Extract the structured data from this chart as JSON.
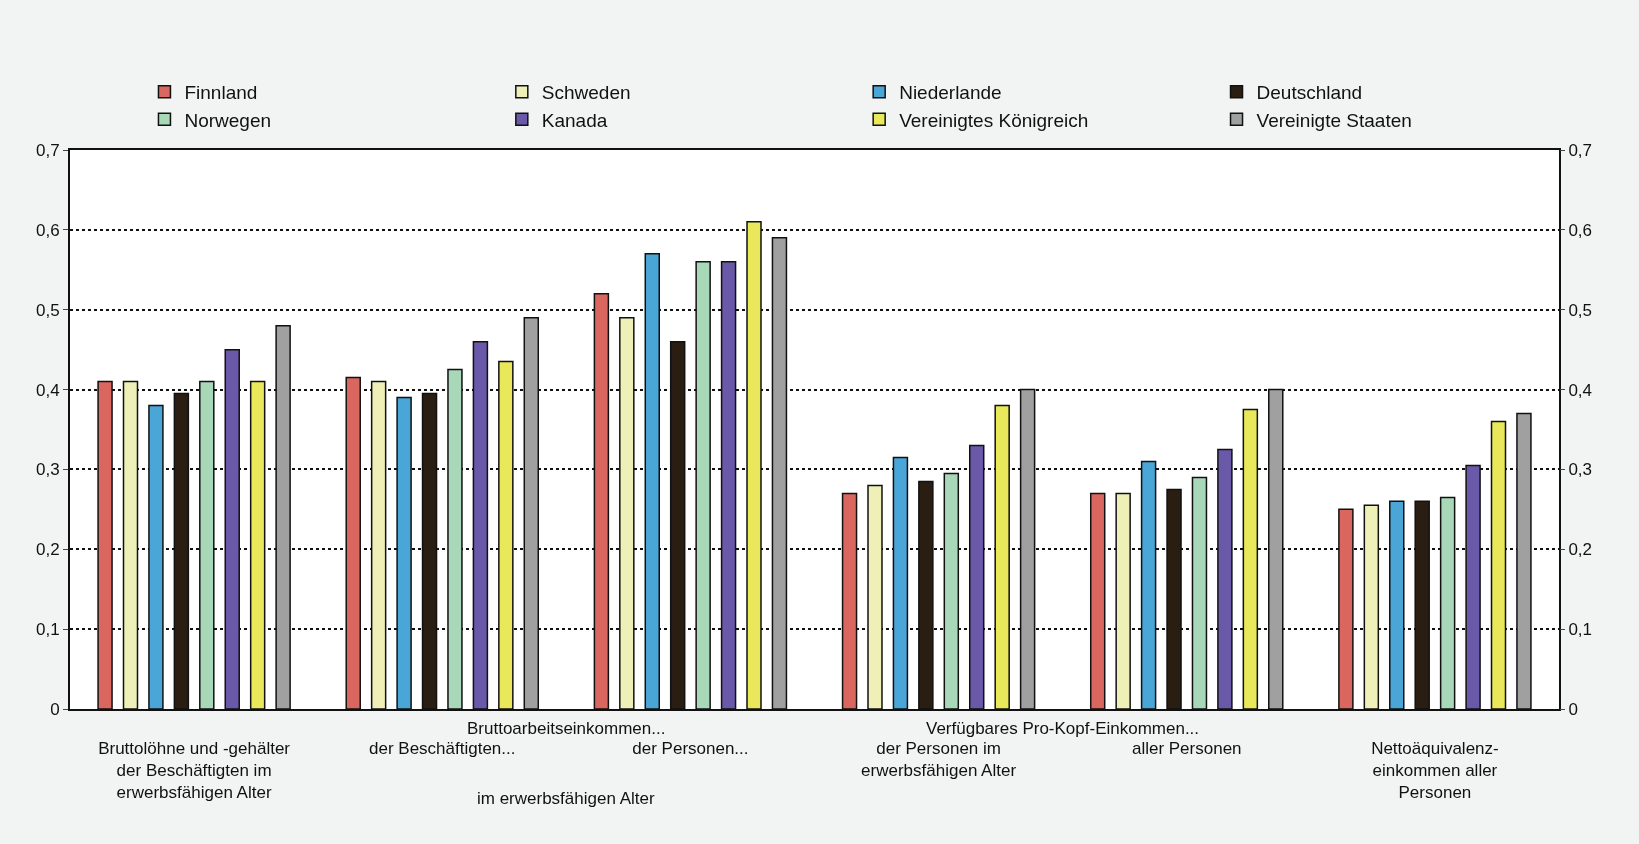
{
  "chart_data": {
    "type": "bar",
    "categories": [
      "Bruttolöhne und -gehälter\nder Beschäftigten im\nerwerbsfähigen Alter",
      "der Beschäftigten...",
      "der Personen...",
      "der Personen im\nerwerbsfähigen Alter",
      "aller Personen",
      "Nettoäquivalenz-\neinkommen aller\nPersonen"
    ],
    "annotations": [
      "Bruttoarbeitseinkommen...",
      "im erwerbsfähigen Alter",
      "Verfügbares Pro-Kopf-Einkommen..."
    ],
    "series": [
      {
        "name": "Finnland",
        "color": "#d9675f",
        "values": [
          0.41,
          0.415,
          0.52,
          0.27,
          0.27,
          0.25
        ]
      },
      {
        "name": "Schweden",
        "color": "#eef0b8",
        "values": [
          0.41,
          0.41,
          0.49,
          0.28,
          0.27,
          0.255
        ]
      },
      {
        "name": "Niederlande",
        "color": "#4aa6d6",
        "values": [
          0.38,
          0.39,
          0.57,
          0.315,
          0.31,
          0.26
        ]
      },
      {
        "name": "Deutschland",
        "color": "#2a1e12",
        "values": [
          0.395,
          0.395,
          0.46,
          0.285,
          0.275,
          0.26
        ]
      },
      {
        "name": "Norwegen",
        "color": "#a8d8b8",
        "values": [
          0.41,
          0.425,
          0.56,
          0.295,
          0.29,
          0.265
        ]
      },
      {
        "name": "Kanada",
        "color": "#6a58a8",
        "values": [
          0.45,
          0.46,
          0.56,
          0.33,
          0.325,
          0.305
        ]
      },
      {
        "name": "Vereinigtes Königreich",
        "color": "#e8e85a",
        "values": [
          0.41,
          0.435,
          0.61,
          0.38,
          0.375,
          0.36
        ]
      },
      {
        "name": "Vereinigte Staaten",
        "color": "#a0a0a0",
        "values": [
          0.48,
          0.49,
          0.59,
          0.4,
          0.4,
          0.37
        ]
      }
    ],
    "ylim": [
      0,
      0.7
    ],
    "yticks": [
      0,
      {
        "value": 0.1,
        "label": "0,1"
      },
      {
        "value": 0.2,
        "label": "0,2"
      },
      {
        "value": 0.3,
        "label": "0,3"
      },
      {
        "value": 0.4,
        "label": "0,4"
      },
      {
        "value": 0.5,
        "label": "0,5"
      },
      {
        "value": 0.6,
        "label": "0,6"
      },
      {
        "value": 0.7,
        "label": "0,7"
      }
    ],
    "y2lim": [
      0,
      0.7
    ],
    "y2ticks": [
      0,
      {
        "value": 0.1,
        "label": "0,1"
      },
      {
        "value": 0.2,
        "label": "0,2"
      },
      {
        "value": 0.3,
        "label": "0,3"
      },
      {
        "value": 0.4,
        "label": "0,4"
      },
      {
        "value": 0.5,
        "label": "0,5"
      },
      {
        "value": 0.6,
        "label": "0,6"
      },
      {
        "value": 0.7,
        "label": "0,7"
      }
    ],
    "grid": "y",
    "legend": "top"
  }
}
